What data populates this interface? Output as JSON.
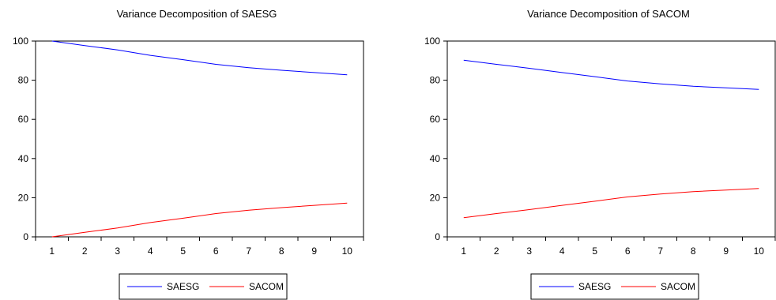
{
  "chart_data": [
    {
      "type": "line",
      "title": "Variance Decomposition of SAESG",
      "xlabel": "",
      "ylabel": "",
      "x": [
        1,
        2,
        3,
        4,
        5,
        6,
        7,
        8,
        9,
        10
      ],
      "x_tick_labels": [
        "1",
        "2",
        "3",
        "4",
        "5",
        "6",
        "7",
        "8",
        "9",
        "10"
      ],
      "ylim": [
        0,
        100
      ],
      "y_ticks": [
        0,
        20,
        40,
        60,
        80,
        100
      ],
      "y_tick_labels": [
        "0",
        "20",
        "40",
        "60",
        "80",
        "100"
      ],
      "grid": false,
      "legend_position": "bottom-center",
      "series": [
        {
          "name": "SAESG",
          "color": "#0000ff",
          "values": [
            100,
            97.7,
            95.5,
            92.7,
            90.5,
            88.1,
            86.4,
            85.1,
            83.9,
            82.8
          ]
        },
        {
          "name": "SACOM",
          "color": "#ff0000",
          "values": [
            0,
            2.3,
            4.5,
            7.3,
            9.5,
            11.9,
            13.6,
            14.9,
            16.1,
            17.2
          ]
        }
      ]
    },
    {
      "type": "line",
      "title": "Variance Decomposition of SACOM",
      "xlabel": "",
      "ylabel": "",
      "x": [
        1,
        2,
        3,
        4,
        5,
        6,
        7,
        8,
        9,
        10
      ],
      "x_tick_labels": [
        "1",
        "2",
        "3",
        "4",
        "5",
        "6",
        "7",
        "8",
        "9",
        "10"
      ],
      "ylim": [
        0,
        100
      ],
      "y_ticks": [
        0,
        20,
        40,
        60,
        80,
        100
      ],
      "y_tick_labels": [
        "0",
        "20",
        "40",
        "60",
        "80",
        "100"
      ],
      "grid": false,
      "legend_position": "bottom-center",
      "series": [
        {
          "name": "SAESG",
          "color": "#0000ff",
          "values": [
            90.2,
            88.1,
            86.1,
            83.9,
            81.8,
            79.6,
            78.1,
            76.9,
            76.1,
            75.3
          ]
        },
        {
          "name": "SACOM",
          "color": "#ff0000",
          "values": [
            9.8,
            11.9,
            13.9,
            16.1,
            18.2,
            20.4,
            21.9,
            23.1,
            23.9,
            24.7
          ]
        }
      ]
    }
  ]
}
